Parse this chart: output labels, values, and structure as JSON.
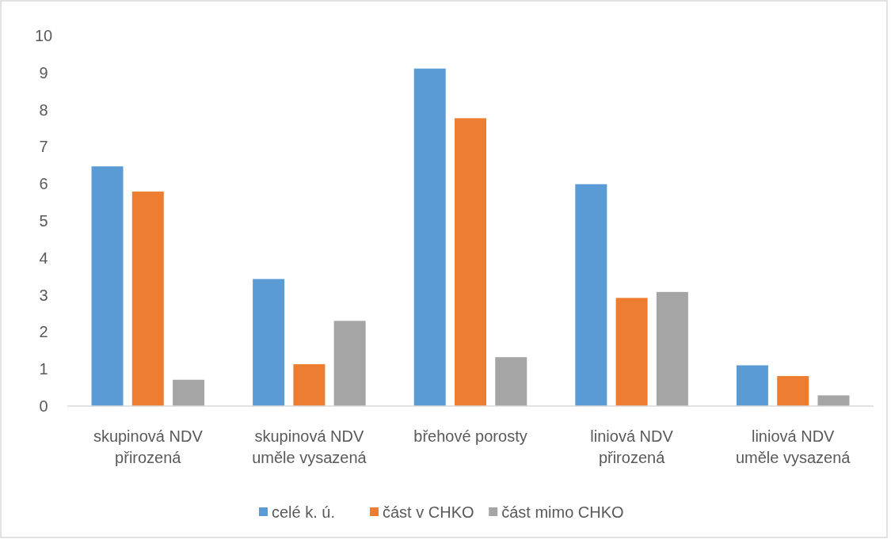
{
  "chart_data": {
    "type": "bar",
    "categories": [
      "skupinová NDV přirozená",
      "skupinová NDV uměle vysazená",
      "břehové porosty",
      "liniová NDV přirozená",
      "liniová NDV uměle vysazená"
    ],
    "series": [
      {
        "name": "celé k. ú.",
        "color": "#5b9bd5",
        "values": [
          6.47,
          3.43,
          9.11,
          5.99,
          1.1
        ]
      },
      {
        "name": "část v CHKO",
        "color": "#ed7d31",
        "values": [
          5.79,
          1.13,
          7.77,
          2.92,
          0.81
        ]
      },
      {
        "name": "část mimo CHKO",
        "color": "#a5a5a5",
        "values": [
          0.71,
          2.3,
          1.32,
          3.08,
          0.29
        ]
      }
    ],
    "ylim": [
      0,
      10
    ],
    "yticks": [
      0,
      1,
      2,
      3,
      4,
      5,
      6,
      7,
      8,
      9,
      10
    ],
    "grid": false,
    "legend": "bottom"
  }
}
